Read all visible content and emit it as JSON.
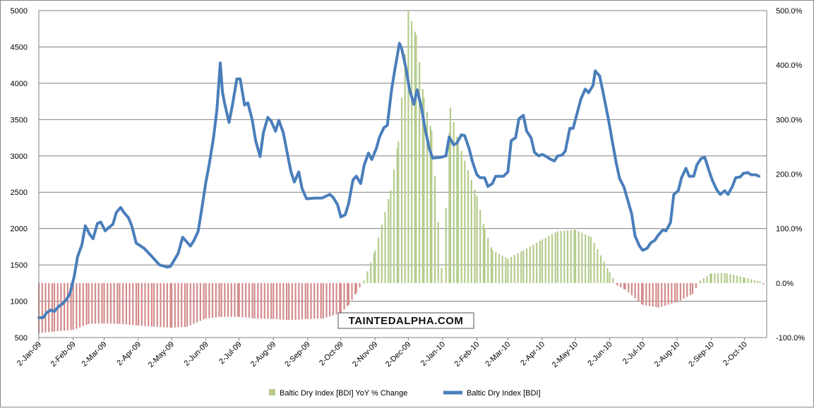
{
  "chart_data": {
    "type": "bar+line",
    "title": "",
    "watermark": "TAINTEDALPHA.COM",
    "y_left": {
      "min": 500,
      "max": 5000,
      "ticks": [
        "500",
        "1000",
        "1500",
        "2000",
        "2500",
        "3000",
        "3500",
        "4000",
        "4500",
        "5000"
      ]
    },
    "y_right": {
      "min": -100,
      "max": 500,
      "ticks": [
        "-100.0%",
        "0.0%",
        "100.0%",
        "200.0%",
        "300.0%",
        "400.0%",
        "500.0%"
      ]
    },
    "x_start": "2009-01-02",
    "x_end": "2010-10-22",
    "x_tick_labels": [
      {
        "date": "2009-01-02",
        "label": "2-Jan-09"
      },
      {
        "date": "2009-02-02",
        "label": "2-Feb-09"
      },
      {
        "date": "2009-03-02",
        "label": "2-Mar-09"
      },
      {
        "date": "2009-04-02",
        "label": "2-Apr-09"
      },
      {
        "date": "2009-05-02",
        "label": "2-May-09"
      },
      {
        "date": "2009-06-02",
        "label": "2-Jun-09"
      },
      {
        "date": "2009-07-02",
        "label": "2-Jul-09"
      },
      {
        "date": "2009-08-02",
        "label": "2-Aug-09"
      },
      {
        "date": "2009-09-02",
        "label": "2-Sep-09"
      },
      {
        "date": "2009-10-02",
        "label": "2-Oct-09"
      },
      {
        "date": "2009-11-02",
        "label": "2-Nov-09"
      },
      {
        "date": "2009-12-02",
        "label": "2-Dec-09"
      },
      {
        "date": "2010-01-02",
        "label": "2-Jan-10"
      },
      {
        "date": "2010-02-02",
        "label": "2-Feb-10"
      },
      {
        "date": "2010-03-02",
        "label": "2-Mar-10"
      },
      {
        "date": "2010-04-02",
        "label": "2-Apr-10"
      },
      {
        "date": "2010-05-02",
        "label": "2-May-10"
      },
      {
        "date": "2010-06-02",
        "label": "2-Jun-10"
      },
      {
        "date": "2010-07-02",
        "label": "2-Jul-10"
      },
      {
        "date": "2010-08-02",
        "label": "2-Aug-10"
      },
      {
        "date": "2010-09-02",
        "label": "2-Sep-10"
      },
      {
        "date": "2010-10-02",
        "label": "2-Oct-10"
      }
    ],
    "grid": true,
    "legend_position": "bottom-center",
    "colors": {
      "bar_positive": "#b5cc8e",
      "bar_negative": "#d48b8b",
      "line": "#4a7ebb",
      "grid": "#808080"
    },
    "series": [
      {
        "name": "Baltic Dry Index [BDI] YoY % Change",
        "type": "bar",
        "axis": "right",
        "points": [
          [
            "2009-01-02",
            -92
          ],
          [
            "2009-01-16",
            -89
          ],
          [
            "2009-02-02",
            -86
          ],
          [
            "2009-02-16",
            -75
          ],
          [
            "2009-03-02",
            -74
          ],
          [
            "2009-03-16",
            -75
          ],
          [
            "2009-04-02",
            -78
          ],
          [
            "2009-04-16",
            -80
          ],
          [
            "2009-05-02",
            -82
          ],
          [
            "2009-05-16",
            -80
          ],
          [
            "2009-06-02",
            -65
          ],
          [
            "2009-06-16",
            -62
          ],
          [
            "2009-07-02",
            -62
          ],
          [
            "2009-07-16",
            -65
          ],
          [
            "2009-08-02",
            -66
          ],
          [
            "2009-08-16",
            -68
          ],
          [
            "2009-09-02",
            -66
          ],
          [
            "2009-09-16",
            -65
          ],
          [
            "2009-10-02",
            -55
          ],
          [
            "2009-10-09",
            -40
          ],
          [
            "2009-10-16",
            -18
          ],
          [
            "2009-10-23",
            5
          ],
          [
            "2009-11-02",
            60
          ],
          [
            "2009-11-16",
            170
          ],
          [
            "2009-11-23",
            260
          ],
          [
            "2009-12-02",
            500
          ],
          [
            "2009-12-09",
            455
          ],
          [
            "2009-12-16",
            340
          ],
          [
            "2009-12-23",
            280
          ],
          [
            "2010-01-02",
            0
          ],
          [
            "2010-01-09",
            322
          ],
          [
            "2010-01-16",
            260
          ],
          [
            "2010-02-02",
            160
          ],
          [
            "2010-02-09",
            100
          ],
          [
            "2010-02-16",
            60
          ],
          [
            "2010-03-02",
            45
          ],
          [
            "2010-03-16",
            60
          ],
          [
            "2010-04-02",
            80
          ],
          [
            "2010-04-16",
            95
          ],
          [
            "2010-05-02",
            98
          ],
          [
            "2010-05-16",
            85
          ],
          [
            "2010-06-02",
            20
          ],
          [
            "2010-06-09",
            -5
          ],
          [
            "2010-06-16",
            -12
          ],
          [
            "2010-07-02",
            -40
          ],
          [
            "2010-07-16",
            -45
          ],
          [
            "2010-08-02",
            -35
          ],
          [
            "2010-08-16",
            -20
          ],
          [
            "2010-08-23",
            5
          ],
          [
            "2010-09-02",
            18
          ],
          [
            "2010-09-16",
            18
          ],
          [
            "2010-10-02",
            10
          ],
          [
            "2010-10-16",
            3
          ],
          [
            "2010-10-22",
            -8
          ]
        ]
      },
      {
        "name": "Baltic Dry Index [BDI]",
        "type": "line",
        "axis": "left",
        "points": [
          [
            "2009-01-02",
            773
          ],
          [
            "2009-01-06",
            774
          ],
          [
            "2009-01-09",
            840
          ],
          [
            "2009-01-13",
            880
          ],
          [
            "2009-01-16",
            860
          ],
          [
            "2009-01-20",
            930
          ],
          [
            "2009-01-23",
            960
          ],
          [
            "2009-01-27",
            1025
          ],
          [
            "2009-01-30",
            1100
          ],
          [
            "2009-02-03",
            1340
          ],
          [
            "2009-02-06",
            1610
          ],
          [
            "2009-02-10",
            1780
          ],
          [
            "2009-02-13",
            2040
          ],
          [
            "2009-02-17",
            1920
          ],
          [
            "2009-02-20",
            1860
          ],
          [
            "2009-02-24",
            2070
          ],
          [
            "2009-02-27",
            2090
          ],
          [
            "2009-03-03",
            1970
          ],
          [
            "2009-03-06",
            2010
          ],
          [
            "2009-03-10",
            2060
          ],
          [
            "2009-03-13",
            2220
          ],
          [
            "2009-03-17",
            2290
          ],
          [
            "2009-03-20",
            2220
          ],
          [
            "2009-03-24",
            2150
          ],
          [
            "2009-03-27",
            2040
          ],
          [
            "2009-03-31",
            1800
          ],
          [
            "2009-04-07",
            1730
          ],
          [
            "2009-04-14",
            1620
          ],
          [
            "2009-04-21",
            1500
          ],
          [
            "2009-04-28",
            1470
          ],
          [
            "2009-05-01",
            1480
          ],
          [
            "2009-05-05",
            1580
          ],
          [
            "2009-05-08",
            1660
          ],
          [
            "2009-05-12",
            1880
          ],
          [
            "2009-05-15",
            1830
          ],
          [
            "2009-05-19",
            1760
          ],
          [
            "2009-05-22",
            1830
          ],
          [
            "2009-05-26",
            1960
          ],
          [
            "2009-05-29",
            2240
          ],
          [
            "2009-06-02",
            2640
          ],
          [
            "2009-06-05",
            2880
          ],
          [
            "2009-06-09",
            3260
          ],
          [
            "2009-06-12",
            3640
          ],
          [
            "2009-06-15",
            4280
          ],
          [
            "2009-06-17",
            3880
          ],
          [
            "2009-06-19",
            3720
          ],
          [
            "2009-06-23",
            3460
          ],
          [
            "2009-06-26",
            3700
          ],
          [
            "2009-06-30",
            4060
          ],
          [
            "2009-07-03",
            4060
          ],
          [
            "2009-07-07",
            3700
          ],
          [
            "2009-07-10",
            3730
          ],
          [
            "2009-07-14",
            3490
          ],
          [
            "2009-07-17",
            3210
          ],
          [
            "2009-07-21",
            2990
          ],
          [
            "2009-07-24",
            3320
          ],
          [
            "2009-07-28",
            3530
          ],
          [
            "2009-07-31",
            3480
          ],
          [
            "2009-08-04",
            3340
          ],
          [
            "2009-08-07",
            3490
          ],
          [
            "2009-08-11",
            3320
          ],
          [
            "2009-08-14",
            3080
          ],
          [
            "2009-08-18",
            2780
          ],
          [
            "2009-08-21",
            2640
          ],
          [
            "2009-08-25",
            2780
          ],
          [
            "2009-08-28",
            2550
          ],
          [
            "2009-09-01",
            2410
          ],
          [
            "2009-09-08",
            2420
          ],
          [
            "2009-09-15",
            2420
          ],
          [
            "2009-09-22",
            2470
          ],
          [
            "2009-09-25",
            2430
          ],
          [
            "2009-09-29",
            2330
          ],
          [
            "2009-10-02",
            2160
          ],
          [
            "2009-10-06",
            2190
          ],
          [
            "2009-10-09",
            2340
          ],
          [
            "2009-10-13",
            2670
          ],
          [
            "2009-10-16",
            2720
          ],
          [
            "2009-10-20",
            2620
          ],
          [
            "2009-10-23",
            2870
          ],
          [
            "2009-10-27",
            3040
          ],
          [
            "2009-10-30",
            2950
          ],
          [
            "2009-11-03",
            3100
          ],
          [
            "2009-11-06",
            3260
          ],
          [
            "2009-11-10",
            3390
          ],
          [
            "2009-11-13",
            3420
          ],
          [
            "2009-11-17",
            3920
          ],
          [
            "2009-11-20",
            4200
          ],
          [
            "2009-11-24",
            4550
          ],
          [
            "2009-11-26",
            4480
          ],
          [
            "2009-11-30",
            4200
          ],
          [
            "2009-12-03",
            3920
          ],
          [
            "2009-12-07",
            3710
          ],
          [
            "2009-12-10",
            3910
          ],
          [
            "2009-12-14",
            3660
          ],
          [
            "2009-12-17",
            3390
          ],
          [
            "2009-12-21",
            3100
          ],
          [
            "2009-12-24",
            2970
          ],
          [
            "2009-12-31",
            2980
          ],
          [
            "2010-01-05",
            3000
          ],
          [
            "2010-01-08",
            3260
          ],
          [
            "2010-01-12",
            3150
          ],
          [
            "2010-01-15",
            3180
          ],
          [
            "2010-01-19",
            3290
          ],
          [
            "2010-01-22",
            3280
          ],
          [
            "2010-01-26",
            3100
          ],
          [
            "2010-01-29",
            2920
          ],
          [
            "2010-02-02",
            2740
          ],
          [
            "2010-02-05",
            2700
          ],
          [
            "2010-02-09",
            2700
          ],
          [
            "2010-02-12",
            2580
          ],
          [
            "2010-02-16",
            2620
          ],
          [
            "2010-02-19",
            2720
          ],
          [
            "2010-02-26",
            2720
          ],
          [
            "2010-03-02",
            2780
          ],
          [
            "2010-03-05",
            3210
          ],
          [
            "2010-03-09",
            3250
          ],
          [
            "2010-03-12",
            3510
          ],
          [
            "2010-03-16",
            3560
          ],
          [
            "2010-03-19",
            3340
          ],
          [
            "2010-03-23",
            3250
          ],
          [
            "2010-03-26",
            3050
          ],
          [
            "2010-03-30",
            3000
          ],
          [
            "2010-04-02",
            3020
          ],
          [
            "2010-04-06",
            2990
          ],
          [
            "2010-04-09",
            2960
          ],
          [
            "2010-04-13",
            2930
          ],
          [
            "2010-04-16",
            3000
          ],
          [
            "2010-04-20",
            3010
          ],
          [
            "2010-04-23",
            3070
          ],
          [
            "2010-04-27",
            3380
          ],
          [
            "2010-04-30",
            3380
          ],
          [
            "2010-05-04",
            3610
          ],
          [
            "2010-05-07",
            3780
          ],
          [
            "2010-05-11",
            3920
          ],
          [
            "2010-05-14",
            3870
          ],
          [
            "2010-05-18",
            3970
          ],
          [
            "2010-05-20",
            4170
          ],
          [
            "2010-05-24",
            4100
          ],
          [
            "2010-05-27",
            3880
          ],
          [
            "2010-06-01",
            3500
          ],
          [
            "2010-06-04",
            3240
          ],
          [
            "2010-06-08",
            2900
          ],
          [
            "2010-06-11",
            2690
          ],
          [
            "2010-06-15",
            2570
          ],
          [
            "2010-06-18",
            2410
          ],
          [
            "2010-06-22",
            2200
          ],
          [
            "2010-06-25",
            1900
          ],
          [
            "2010-06-29",
            1760
          ],
          [
            "2010-07-02",
            1700
          ],
          [
            "2010-07-06",
            1730
          ],
          [
            "2010-07-09",
            1800
          ],
          [
            "2010-07-13",
            1840
          ],
          [
            "2010-07-16",
            1910
          ],
          [
            "2010-07-20",
            1980
          ],
          [
            "2010-07-23",
            1970
          ],
          [
            "2010-07-27",
            2080
          ],
          [
            "2010-07-30",
            2470
          ],
          [
            "2010-08-03",
            2520
          ],
          [
            "2010-08-06",
            2700
          ],
          [
            "2010-08-10",
            2830
          ],
          [
            "2010-08-13",
            2720
          ],
          [
            "2010-08-17",
            2720
          ],
          [
            "2010-08-20",
            2880
          ],
          [
            "2010-08-24",
            2970
          ],
          [
            "2010-08-27",
            2980
          ],
          [
            "2010-08-31",
            2790
          ],
          [
            "2010-09-03",
            2660
          ],
          [
            "2010-09-07",
            2530
          ],
          [
            "2010-09-10",
            2470
          ],
          [
            "2010-09-14",
            2520
          ],
          [
            "2010-09-17",
            2470
          ],
          [
            "2010-09-21",
            2580
          ],
          [
            "2010-09-24",
            2700
          ],
          [
            "2010-09-28",
            2710
          ],
          [
            "2010-10-01",
            2760
          ],
          [
            "2010-10-05",
            2770
          ],
          [
            "2010-10-08",
            2740
          ],
          [
            "2010-10-12",
            2740
          ],
          [
            "2010-10-15",
            2720
          ]
        ]
      }
    ]
  }
}
